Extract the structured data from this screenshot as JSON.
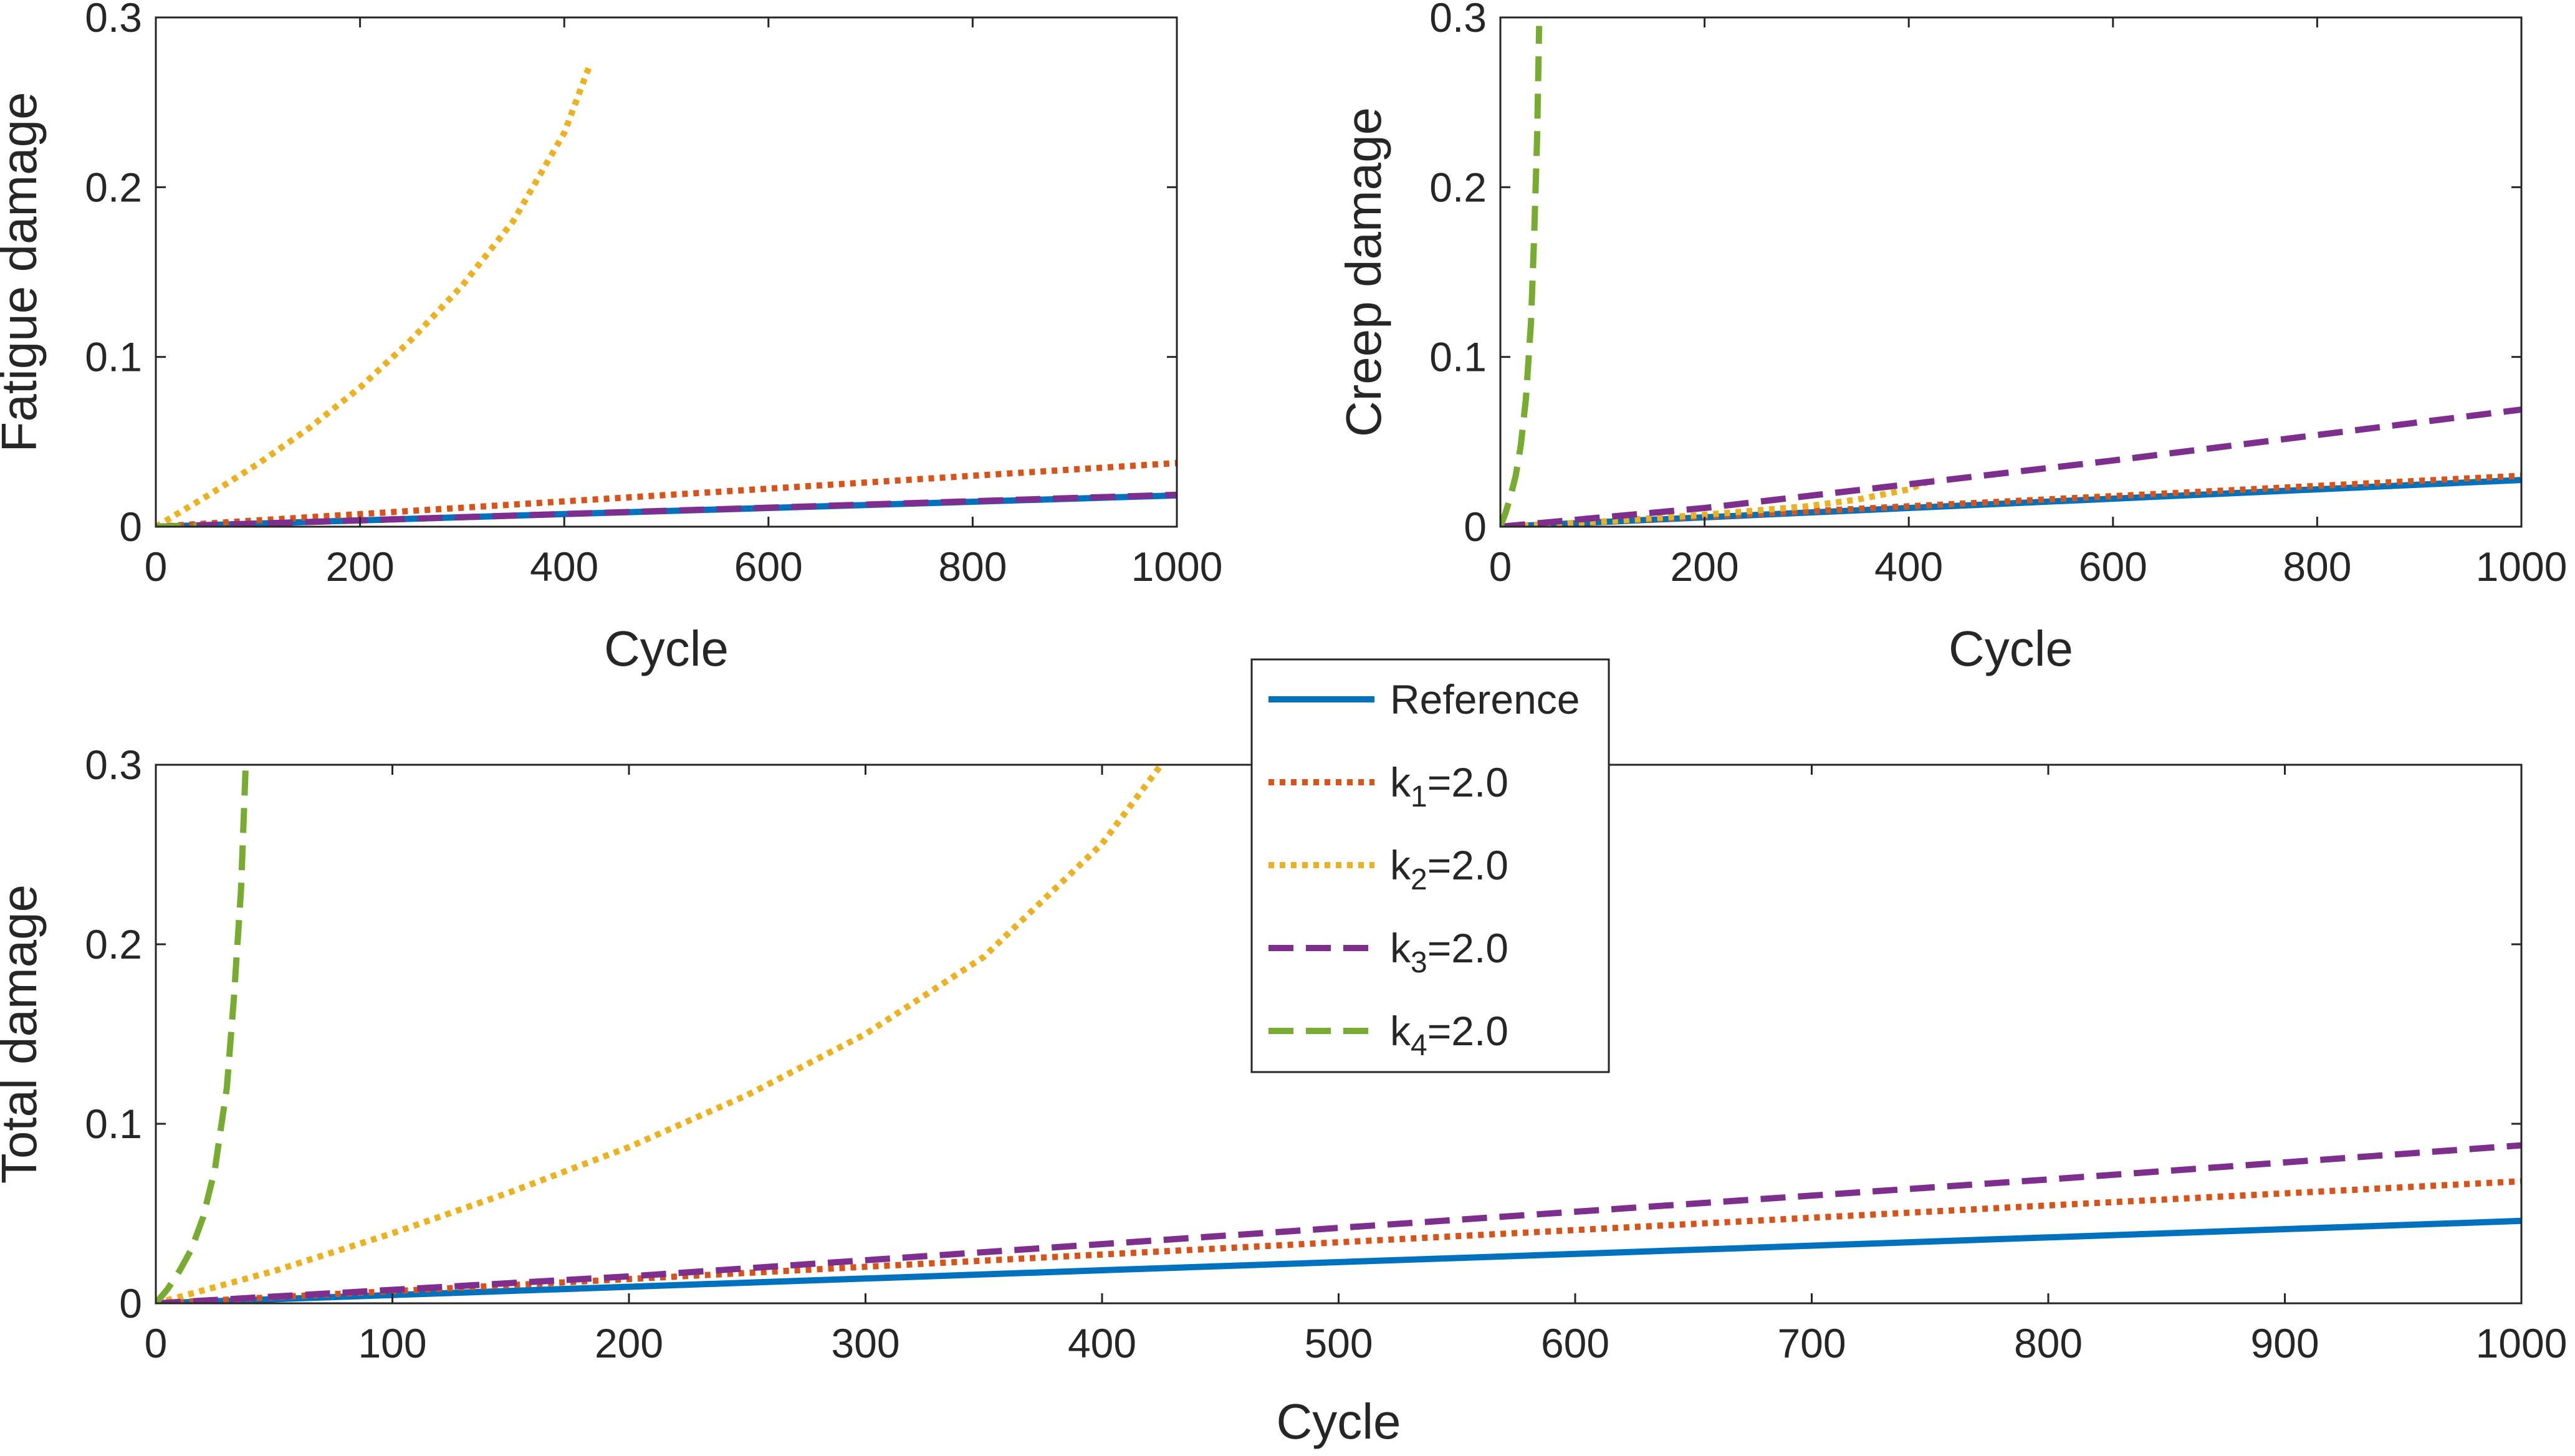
{
  "chart_data": [
    {
      "id": "fatigue",
      "type": "line",
      "title": "",
      "xlabel": "Cycle",
      "ylabel": "Fatigue damage",
      "xlim": [
        0,
        1000
      ],
      "ylim": [
        0,
        0.3
      ],
      "xticks": [
        0,
        200,
        400,
        600,
        800,
        1000
      ],
      "xtick_labels": [
        "0",
        "200",
        "400",
        "600",
        "800",
        "1000"
      ],
      "yticks": [
        0,
        0.1,
        0.2,
        0.3
      ],
      "ytick_labels": [
        "0",
        "0.1",
        "0.2",
        "0.3"
      ],
      "series": [
        {
          "key": "ref",
          "x": [
            0,
            200,
            400,
            600,
            800,
            1000
          ],
          "y": [
            0,
            0.0037,
            0.0074,
            0.011,
            0.0147,
            0.0184
          ]
        },
        {
          "key": "k1",
          "x": [
            0,
            200,
            400,
            600,
            800,
            1000
          ],
          "y": [
            0,
            0.0074,
            0.0149,
            0.0224,
            0.03,
            0.0375
          ]
        },
        {
          "key": "k2",
          "x": [
            0,
            25,
            50,
            100,
            150,
            200,
            250,
            300,
            350,
            400,
            425
          ],
          "y": [
            0,
            0.009,
            0.018,
            0.037,
            0.058,
            0.082,
            0.11,
            0.142,
            0.18,
            0.232,
            0.272
          ]
        },
        {
          "key": "k3",
          "x": [
            0,
            200,
            400,
            600,
            800,
            1000
          ],
          "y": [
            0,
            0.0037,
            0.0075,
            0.0112,
            0.015,
            0.0188
          ]
        },
        {
          "key": "k4",
          "x": [
            0,
            20,
            40
          ],
          "y": [
            0,
            0.0003,
            0.0006
          ]
        }
      ]
    },
    {
      "id": "creep",
      "type": "line",
      "title": "",
      "xlabel": "Cycle",
      "ylabel": "Creep damage",
      "xlim": [
        0,
        1000
      ],
      "ylim": [
        0,
        0.3
      ],
      "xticks": [
        0,
        200,
        400,
        600,
        800,
        1000
      ],
      "xtick_labels": [
        "0",
        "200",
        "400",
        "600",
        "800",
        "1000"
      ],
      "yticks": [
        0,
        0.1,
        0.2,
        0.3
      ],
      "ytick_labels": [
        "0",
        "0.1",
        "0.2",
        "0.3"
      ],
      "series": [
        {
          "key": "ref",
          "x": [
            0,
            200,
            400,
            600,
            800,
            1000
          ],
          "y": [
            0,
            0.0055,
            0.011,
            0.0165,
            0.022,
            0.0275
          ]
        },
        {
          "key": "k1",
          "x": [
            0,
            200,
            400,
            600,
            800,
            1000
          ],
          "y": [
            0,
            0.006,
            0.012,
            0.018,
            0.024,
            0.03
          ]
        },
        {
          "key": "k2",
          "x": [
            0,
            100,
            200,
            300,
            350,
            400,
            425
          ],
          "y": [
            0,
            0.003,
            0.007,
            0.012,
            0.016,
            0.022,
            0.028
          ]
        },
        {
          "key": "k3",
          "x": [
            0,
            200,
            400,
            600,
            800,
            1000
          ],
          "y": [
            0,
            0.011,
            0.025,
            0.039,
            0.054,
            0.069
          ]
        },
        {
          "key": "k4",
          "x": [
            0,
            5,
            10,
            15,
            20,
            25,
            30,
            33,
            36,
            38
          ],
          "y": [
            0,
            0.008,
            0.018,
            0.03,
            0.048,
            0.075,
            0.12,
            0.17,
            0.23,
            0.295
          ]
        }
      ]
    },
    {
      "id": "total",
      "type": "line",
      "title": "",
      "xlabel": "Cycle",
      "ylabel": "Total damage",
      "xlim": [
        0,
        1000
      ],
      "ylim": [
        0,
        0.3
      ],
      "xticks": [
        0,
        100,
        200,
        300,
        400,
        500,
        600,
        700,
        800,
        900,
        1000
      ],
      "xtick_labels": [
        "0",
        "100",
        "200",
        "300",
        "400",
        "500",
        "600",
        "700",
        "800",
        "900",
        "1000"
      ],
      "yticks": [
        0,
        0.1,
        0.2,
        0.3
      ],
      "ytick_labels": [
        "0",
        "0.1",
        "0.2",
        "0.3"
      ],
      "series": [
        {
          "key": "ref",
          "x": [
            0,
            200,
            400,
            600,
            800,
            1000
          ],
          "y": [
            0,
            0.0092,
            0.0184,
            0.0275,
            0.0367,
            0.0459
          ]
        },
        {
          "key": "k1",
          "x": [
            0,
            200,
            400,
            600,
            800,
            1000
          ],
          "y": [
            0,
            0.0135,
            0.0272,
            0.0408,
            0.0545,
            0.068
          ]
        },
        {
          "key": "k2",
          "x": [
            0,
            50,
            100,
            150,
            200,
            250,
            300,
            350,
            400,
            425
          ],
          "y": [
            0,
            0.018,
            0.039,
            0.062,
            0.087,
            0.116,
            0.15,
            0.193,
            0.256,
            0.3
          ]
        },
        {
          "key": "k3",
          "x": [
            0,
            200,
            400,
            600,
            800,
            1000
          ],
          "y": [
            0,
            0.015,
            0.033,
            0.051,
            0.069,
            0.088
          ]
        },
        {
          "key": "k4",
          "x": [
            0,
            5,
            10,
            15,
            20,
            25,
            30,
            33,
            36,
            38
          ],
          "y": [
            0,
            0.008,
            0.018,
            0.03,
            0.048,
            0.075,
            0.12,
            0.17,
            0.23,
            0.3
          ]
        }
      ]
    }
  ],
  "series_styles": {
    "ref": {
      "color": "#0072BD",
      "dash": "solid"
    },
    "k1": {
      "color": "#D95319",
      "dash": "dotted"
    },
    "k2": {
      "color": "#EDB120",
      "dash": "dotted"
    },
    "k3": {
      "color": "#7E2F8E",
      "dash": "dashed"
    },
    "k4": {
      "color": "#77AC30",
      "dash": "dashed"
    }
  },
  "legend": {
    "entries": [
      {
        "key": "ref",
        "name": "Reference",
        "base": "Reference",
        "sub": "",
        "rest": ""
      },
      {
        "key": "k1",
        "name": "k1=2.0",
        "base": "k",
        "sub": "1",
        "rest": "=2.0"
      },
      {
        "key": "k2",
        "name": "k2=2.0",
        "base": "k",
        "sub": "2",
        "rest": "=2.0"
      },
      {
        "key": "k3",
        "name": "k3=2.0",
        "base": "k",
        "sub": "3",
        "rest": "=2.0"
      },
      {
        "key": "k4",
        "name": "k4=2.0",
        "base": "k",
        "sub": "4",
        "rest": "=2.0"
      }
    ]
  }
}
